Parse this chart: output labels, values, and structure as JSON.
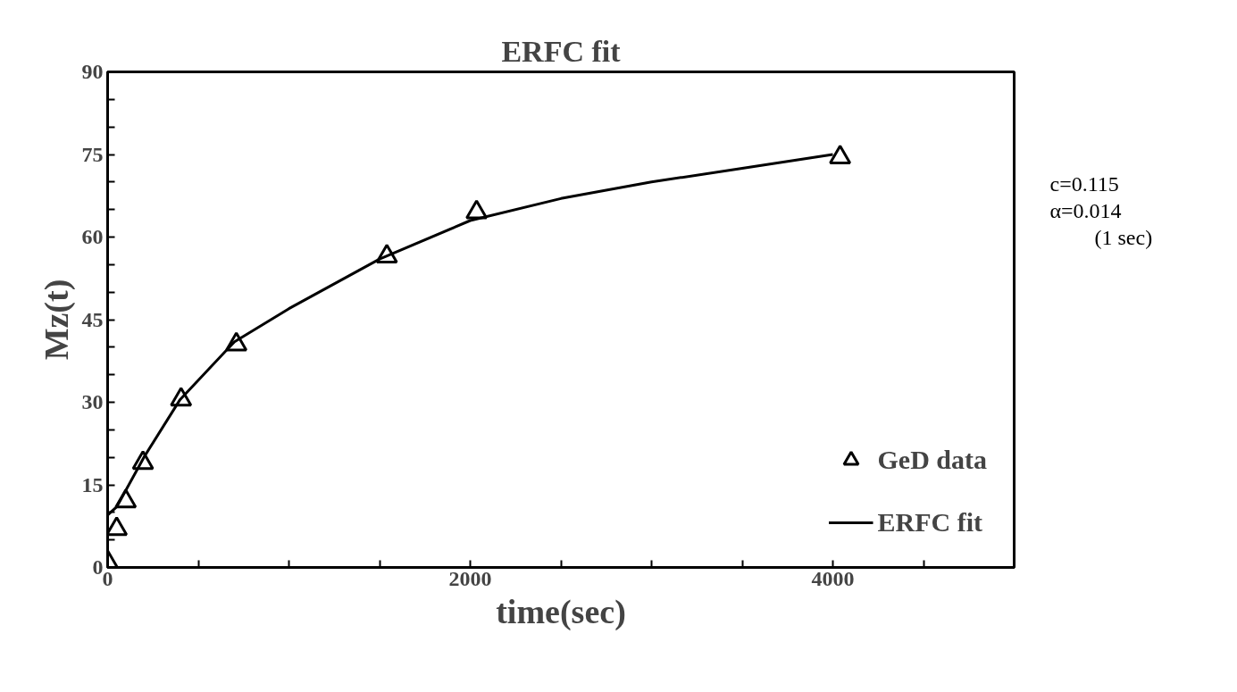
{
  "chart_data": {
    "type": "scatter",
    "title": "ERFC fit",
    "xlabel": "time(sec)",
    "ylabel": "Mz(t)",
    "xlim": [
      0,
      5000
    ],
    "ylim": [
      0,
      90
    ],
    "xticks": [
      0,
      {
        "value": 500,
        "label": null
      },
      {
        "value": 1000,
        "label": null
      },
      {
        "value": 1500,
        "label": null
      },
      2000,
      {
        "value": 2500,
        "label": null
      },
      {
        "value": 3000,
        "label": null
      },
      {
        "value": 3500,
        "label": null
      },
      4000,
      {
        "value": 4500,
        "label": null
      }
    ],
    "yticks": [
      0,
      {
        "value": 5,
        "label": null
      },
      {
        "value": 10,
        "label": null
      },
      15,
      {
        "value": 20,
        "label": null
      },
      {
        "value": 25,
        "label": null
      },
      30,
      {
        "value": 35,
        "label": null
      },
      {
        "value": 40,
        "label": null
      },
      45,
      {
        "value": 50,
        "label": null
      },
      {
        "value": 55,
        "label": null
      },
      60,
      {
        "value": 65,
        "label": null
      },
      {
        "value": 70,
        "label": null
      },
      75,
      {
        "value": 80,
        "label": null
      },
      {
        "value": 85,
        "label": null
      },
      90
    ],
    "grid": false,
    "legend": "bottom right",
    "series": [
      {
        "name": "GeD data",
        "type": "scatter",
        "marker": "triangle",
        "color": "#000000",
        "x": [
          0,
          50,
          100,
          195,
          405,
          710,
          1540,
          2035,
          4040
        ],
        "values": [
          1,
          7,
          12,
          19,
          30.5,
          40.5,
          56.5,
          64.5,
          74.5
        ]
      },
      {
        "name": "ERFC fit",
        "type": "line",
        "marker": "none",
        "line_style": "solid",
        "color": "#000000",
        "x": [
          0,
          50,
          100,
          200,
          400,
          700,
          1000,
          1500,
          2000,
          2500,
          3000,
          3500,
          4000
        ],
        "values": [
          9.5,
          11,
          14,
          20,
          30.5,
          41,
          47,
          56,
          63,
          67,
          70,
          72.5,
          75
        ]
      }
    ],
    "annotations": [
      "c=0.115",
      "α=0.014",
      "(1 sec)"
    ]
  }
}
